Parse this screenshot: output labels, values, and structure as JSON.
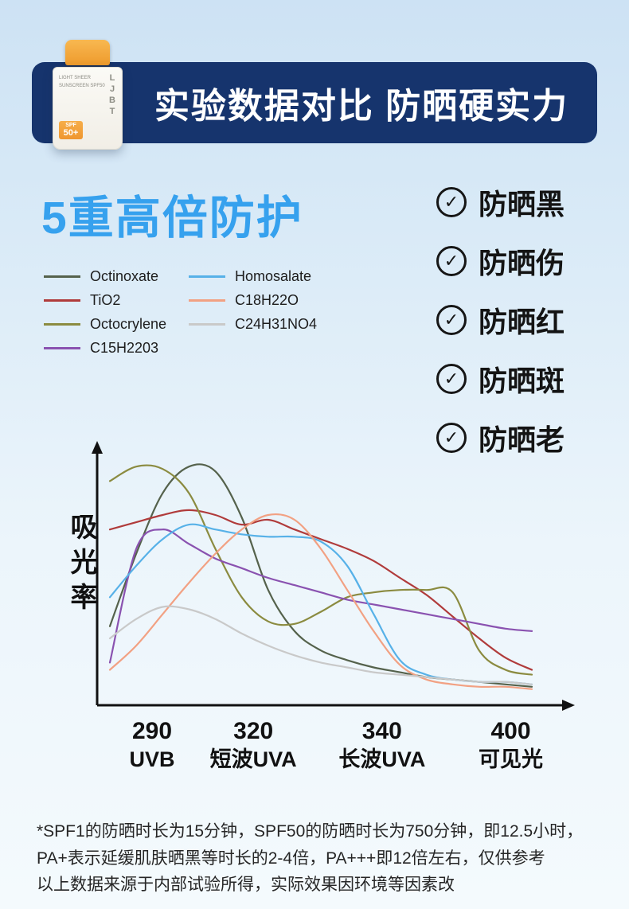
{
  "banner": {
    "title": "实验数据对比 防晒硬实力",
    "bg_color": "#16346d"
  },
  "bottle": {
    "brand": "LJBT",
    "label_line1": "LIGHT SHEER",
    "label_line2": "SUNSCREEN SPF50",
    "badge_top": "SPF",
    "badge_value": "50+",
    "cap_color": "#ef9a2c"
  },
  "section": {
    "title": "5重高倍防护",
    "title_color": "#36a1ee"
  },
  "benefits": {
    "check_glyph": "✓",
    "items": [
      {
        "label": "防晒黑"
      },
      {
        "label": "防晒伤"
      },
      {
        "label": "防晒红"
      },
      {
        "label": "防晒斑"
      },
      {
        "label": "防晒老"
      }
    ]
  },
  "chart_data": {
    "type": "line",
    "title": "",
    "xlabel": "",
    "ylabel": "吸光率",
    "y_range": [
      0,
      1
    ],
    "grid": false,
    "legend_position": "above-left",
    "legend_split": 4,
    "x_ticks": [
      {
        "value": "290",
        "label": "UVB",
        "pos": 0.1
      },
      {
        "value": "320",
        "label": "短波UVA",
        "pos": 0.34
      },
      {
        "value": "340",
        "label": "长波UVA",
        "pos": 0.645
      },
      {
        "value": "400",
        "label": "可见光",
        "pos": 0.95
      }
    ],
    "series": [
      {
        "name": "Octinoxate",
        "color": "#55624c",
        "values": [
          0.3,
          0.6,
          0.85,
          0.96,
          0.94,
          0.75,
          0.45,
          0.28,
          0.2,
          0.16,
          0.13,
          0.11,
          0.09,
          0.08,
          0.07,
          0.06,
          0.05
        ]
      },
      {
        "name": "TiO2",
        "color": "#b03b3b",
        "values": [
          0.7,
          0.73,
          0.76,
          0.78,
          0.76,
          0.72,
          0.74,
          0.7,
          0.66,
          0.62,
          0.57,
          0.5,
          0.43,
          0.34,
          0.25,
          0.17,
          0.12
        ]
      },
      {
        "name": "Octocrylene",
        "color": "#8b8b40",
        "values": [
          0.9,
          0.96,
          0.95,
          0.85,
          0.62,
          0.42,
          0.32,
          0.31,
          0.36,
          0.42,
          0.44,
          0.45,
          0.45,
          0.44,
          0.2,
          0.12,
          0.1
        ]
      },
      {
        "name": "C15H2203",
        "color": "#8a52b0",
        "values": [
          0.15,
          0.62,
          0.7,
          0.64,
          0.58,
          0.54,
          0.5,
          0.47,
          0.44,
          0.41,
          0.39,
          0.37,
          0.35,
          0.33,
          0.31,
          0.29,
          0.28
        ]
      },
      {
        "name": "Homosalate",
        "color": "#57b1e8",
        "values": [
          0.42,
          0.55,
          0.66,
          0.72,
          0.7,
          0.68,
          0.67,
          0.67,
          0.65,
          0.55,
          0.35,
          0.16,
          0.1,
          0.08,
          0.07,
          0.07,
          0.06
        ]
      },
      {
        "name": "C18H22O",
        "color": "#f2a183",
        "values": [
          0.12,
          0.22,
          0.35,
          0.48,
          0.6,
          0.7,
          0.76,
          0.74,
          0.62,
          0.45,
          0.28,
          0.14,
          0.08,
          0.06,
          0.05,
          0.05,
          0.04
        ]
      },
      {
        "name": "C24H31NO4",
        "color": "#c9c9c9",
        "values": [
          0.25,
          0.33,
          0.38,
          0.37,
          0.33,
          0.27,
          0.22,
          0.18,
          0.15,
          0.13,
          0.11,
          0.1,
          0.09,
          0.08,
          0.07,
          0.07,
          0.06
        ]
      }
    ]
  },
  "footnote": {
    "lines": [
      "*SPF1的防晒时长为15分钟，SPF50的防晒时长为750分钟，即12.5小时，",
      "PA+表示延缓肌肤晒黑等时长的2-4倍，PA+++即12倍左右，仅供参考",
      "以上数据来源于内部试验所得，实际效果因环境等因素改"
    ]
  }
}
